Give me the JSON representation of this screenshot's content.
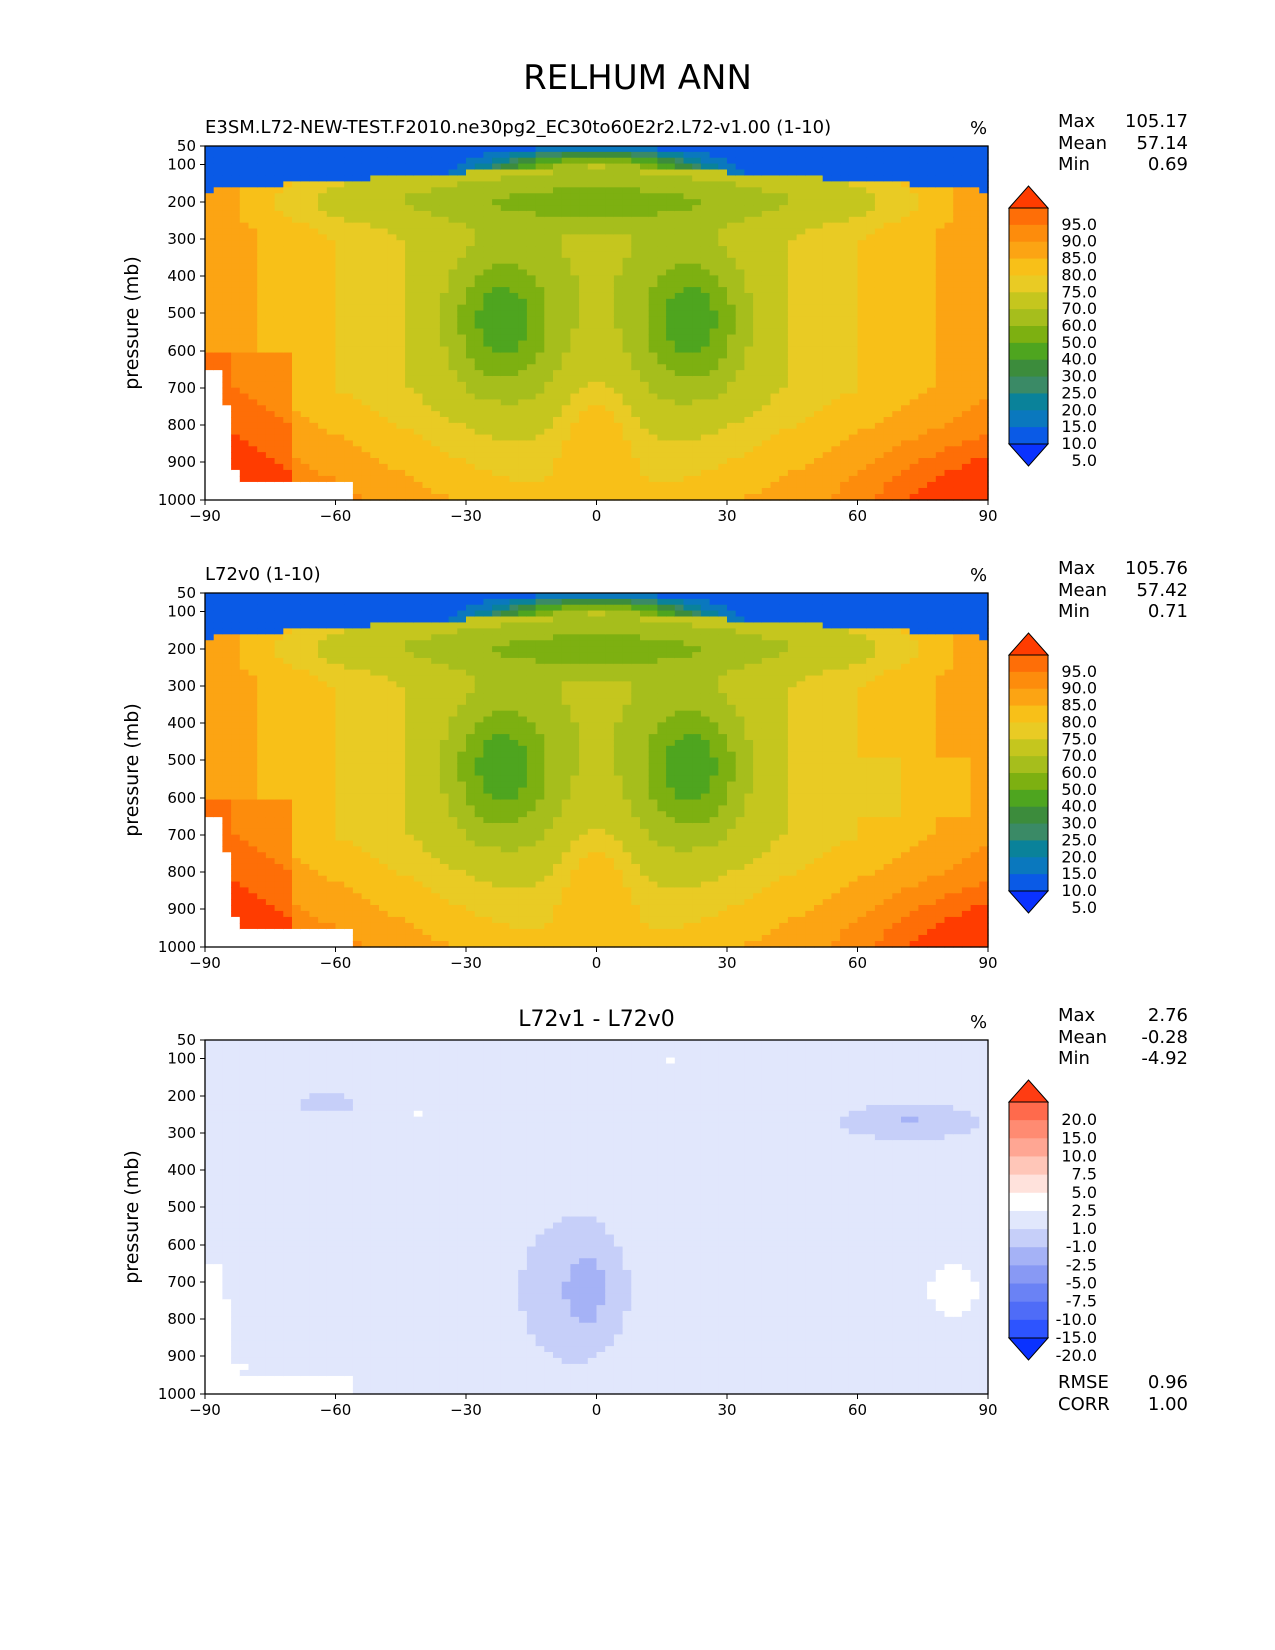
{
  "suptitle": "RELHUM ANN",
  "units": "%",
  "ylabel": "pressure (mb)",
  "x_tick_labels": [
    "−90",
    "−60",
    "−30",
    "0",
    "30",
    "60",
    "90"
  ],
  "y_tick_labels": [
    "50",
    "100",
    "200",
    "300",
    "400",
    "500",
    "600",
    "700",
    "800",
    "900",
    "1000"
  ],
  "stat_labels": {
    "max": "Max",
    "mean": "Mean",
    "min": "Min",
    "rmse": "RMSE",
    "corr": "CORR"
  },
  "panels": [
    {
      "title": "E3SM.L72-NEW-TEST.F2010.ne30pg2_EC30to60E2r2.L72-v1.00 (1-10)",
      "stats": {
        "max": "105.17",
        "mean": "57.14",
        "min": "0.69"
      },
      "colorbar_labels": [
        "95.0",
        "90.0",
        "85.0",
        "80.0",
        "75.0",
        "70.0",
        "60.0",
        "50.0",
        "40.0",
        "30.0",
        "25.0",
        "20.0",
        "15.0",
        "10.0",
        "5.0"
      ]
    },
    {
      "title": "L72v0 (1-10)",
      "stats": {
        "max": "105.76",
        "mean": "57.42",
        "min": "0.71"
      },
      "colorbar_labels": [
        "95.0",
        "90.0",
        "85.0",
        "80.0",
        "75.0",
        "70.0",
        "60.0",
        "50.0",
        "40.0",
        "30.0",
        "25.0",
        "20.0",
        "15.0",
        "10.0",
        "5.0"
      ]
    },
    {
      "title": "L72v1 - L72v0",
      "stats": {
        "max": "2.76",
        "mean": "-0.28",
        "min": "-4.92"
      },
      "metrics": {
        "rmse": "0.96",
        "corr": "1.00"
      },
      "colorbar_labels": [
        "20.0",
        "15.0",
        "10.0",
        "7.5",
        "5.0",
        "2.5",
        "1.0",
        "-1.0",
        "-2.5",
        "-5.0",
        "-7.5",
        "-10.0",
        "-15.0",
        "-20.0"
      ]
    }
  ],
  "chart_data": {
    "type": "heatmap",
    "title": "RELHUM ANN",
    "xlabel": "",
    "ylabel": "pressure (mb)",
    "xlim": [
      -90,
      90
    ],
    "ylim": [
      1000,
      50
    ],
    "x_ticks": [
      -90,
      -60,
      -30,
      0,
      30,
      60,
      90
    ],
    "y_ticks": [
      50,
      100,
      200,
      300,
      400,
      500,
      600,
      700,
      800,
      900,
      1000
    ],
    "model_levels": [
      5,
      10,
      15,
      20,
      25,
      30,
      40,
      50,
      60,
      70,
      75,
      80,
      85,
      90,
      95
    ],
    "model_colors": [
      "#0a32ff",
      "#0a5ae6",
      "#0a78be",
      "#0a829a",
      "#3a8a66",
      "#3c8c3c",
      "#4ea51f",
      "#7db011",
      "#a6be1c",
      "#c5c61e",
      "#e9cb24",
      "#f8c018",
      "#fca413",
      "#fd8c0c",
      "#fe6e07",
      "#ff3c00"
    ],
    "diff_levels": [
      -20,
      -15,
      -10,
      -7.5,
      -5,
      -2.5,
      -1,
      1,
      2.5,
      5,
      7.5,
      10,
      15,
      20
    ],
    "diff_colors": [
      "#0a32ff",
      "#2d54ff",
      "#4f6cf7",
      "#6a82f5",
      "#8899f4",
      "#a5b2f6",
      "#c6cff9",
      "#e1e7fc",
      "#ffffff",
      "#ffe2dc",
      "#ffc6b8",
      "#ffa693",
      "#ff8b72",
      "#ff6a4c",
      "#ff3c12"
    ],
    "series": [
      {
        "name": "E3SM.L72-NEW-TEST.F2010.ne30pg2_EC30to60E2r2.L72-v1.00 (1-10)",
        "max": 105.17,
        "mean": 57.14,
        "min": 0.69
      },
      {
        "name": "L72v0 (1-10)",
        "max": 105.76,
        "mean": 57.42,
        "min": 0.71
      },
      {
        "name": "L72v1 - L72v0",
        "max": 2.76,
        "mean": -0.28,
        "min": -4.92,
        "rmse": 0.96,
        "corr": 1.0
      }
    ]
  }
}
